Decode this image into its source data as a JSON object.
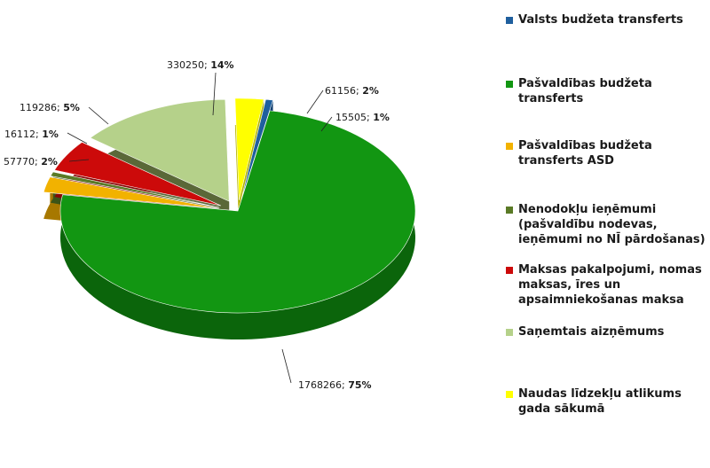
{
  "chart_data": {
    "type": "pie",
    "title": "",
    "slices": [
      {
        "name": "Valsts budžeta transferts",
        "value": 15505,
        "percent": "1%",
        "color": "#1f5f9e",
        "side": "#124070",
        "exploded": true
      },
      {
        "name": "Pašvaldības budžeta transferts",
        "value": 1768266,
        "percent": "75%",
        "color": "#129612",
        "side": "#0b650b",
        "exploded": false
      },
      {
        "name": "Pašvaldības budžeta transferts ASD",
        "value": 57770,
        "percent": "2%",
        "color": "#f2b200",
        "side": "#a77800",
        "exploded": true
      },
      {
        "name": "Nenodokļu ieņēmumi (pašvaldību nodevas, ieņēmumi no NĪ pārdošanas)",
        "value": 16112,
        "percent": "1%",
        "color": "#5a7a26",
        "side": "#3c5418",
        "exploded": true
      },
      {
        "name": "Maksas pakalpojumi, nomas maksas, īres un apsaimniekošanas maksa",
        "value": 119286,
        "percent": "5%",
        "color": "#cc0a0a",
        "side": "#850606",
        "exploded": true
      },
      {
        "name": "Saņemtais aizņēmums",
        "value": 330250,
        "percent": "14%",
        "color": "#b5d18a",
        "side": "#5a6838",
        "exploded": true
      },
      {
        "name": "Naudas līdzekļu atlikums gada sākumā",
        "value": 61156,
        "percent": "2%",
        "color": "#ffff00",
        "side": "#b3b300",
        "exploded": true
      }
    ],
    "legend_position": "right"
  },
  "legend": [
    {
      "label": "Valsts budžeta transferts",
      "color": "#1f5f9e"
    },
    {
      "label": "Pašvaldības budžeta transferts",
      "color": "#129612"
    },
    {
      "label": "Pašvaldības budžeta transferts ASD",
      "color": "#f2b200"
    },
    {
      "label": "Nenodokļu ieņēmumi (pašvaldību nodevas, ieņēmumi no NĪ pārdošanas)",
      "color": "#5a7a26"
    },
    {
      "label": "Maksas pakalpojumi, nomas maksas, īres un apsaimniekošanas maksa",
      "color": "#cc0a0a"
    },
    {
      "label": "Saņemtais aizņēmums",
      "color": "#b5d18a"
    },
    {
      "label": "Naudas līdzekļu atlikums gada sākumā",
      "color": "#ffff00"
    }
  ],
  "labels": [
    {
      "value": "15505; ",
      "pct": "1%"
    },
    {
      "value": "1768266; ",
      "pct": "75%"
    },
    {
      "value": "57770; ",
      "pct": "2%"
    },
    {
      "value": "16112; ",
      "pct": "1%"
    },
    {
      "value": "119286; ",
      "pct": "5%"
    },
    {
      "value": "330250; ",
      "pct": "14%"
    },
    {
      "value": "61156; ",
      "pct": "2%"
    }
  ]
}
